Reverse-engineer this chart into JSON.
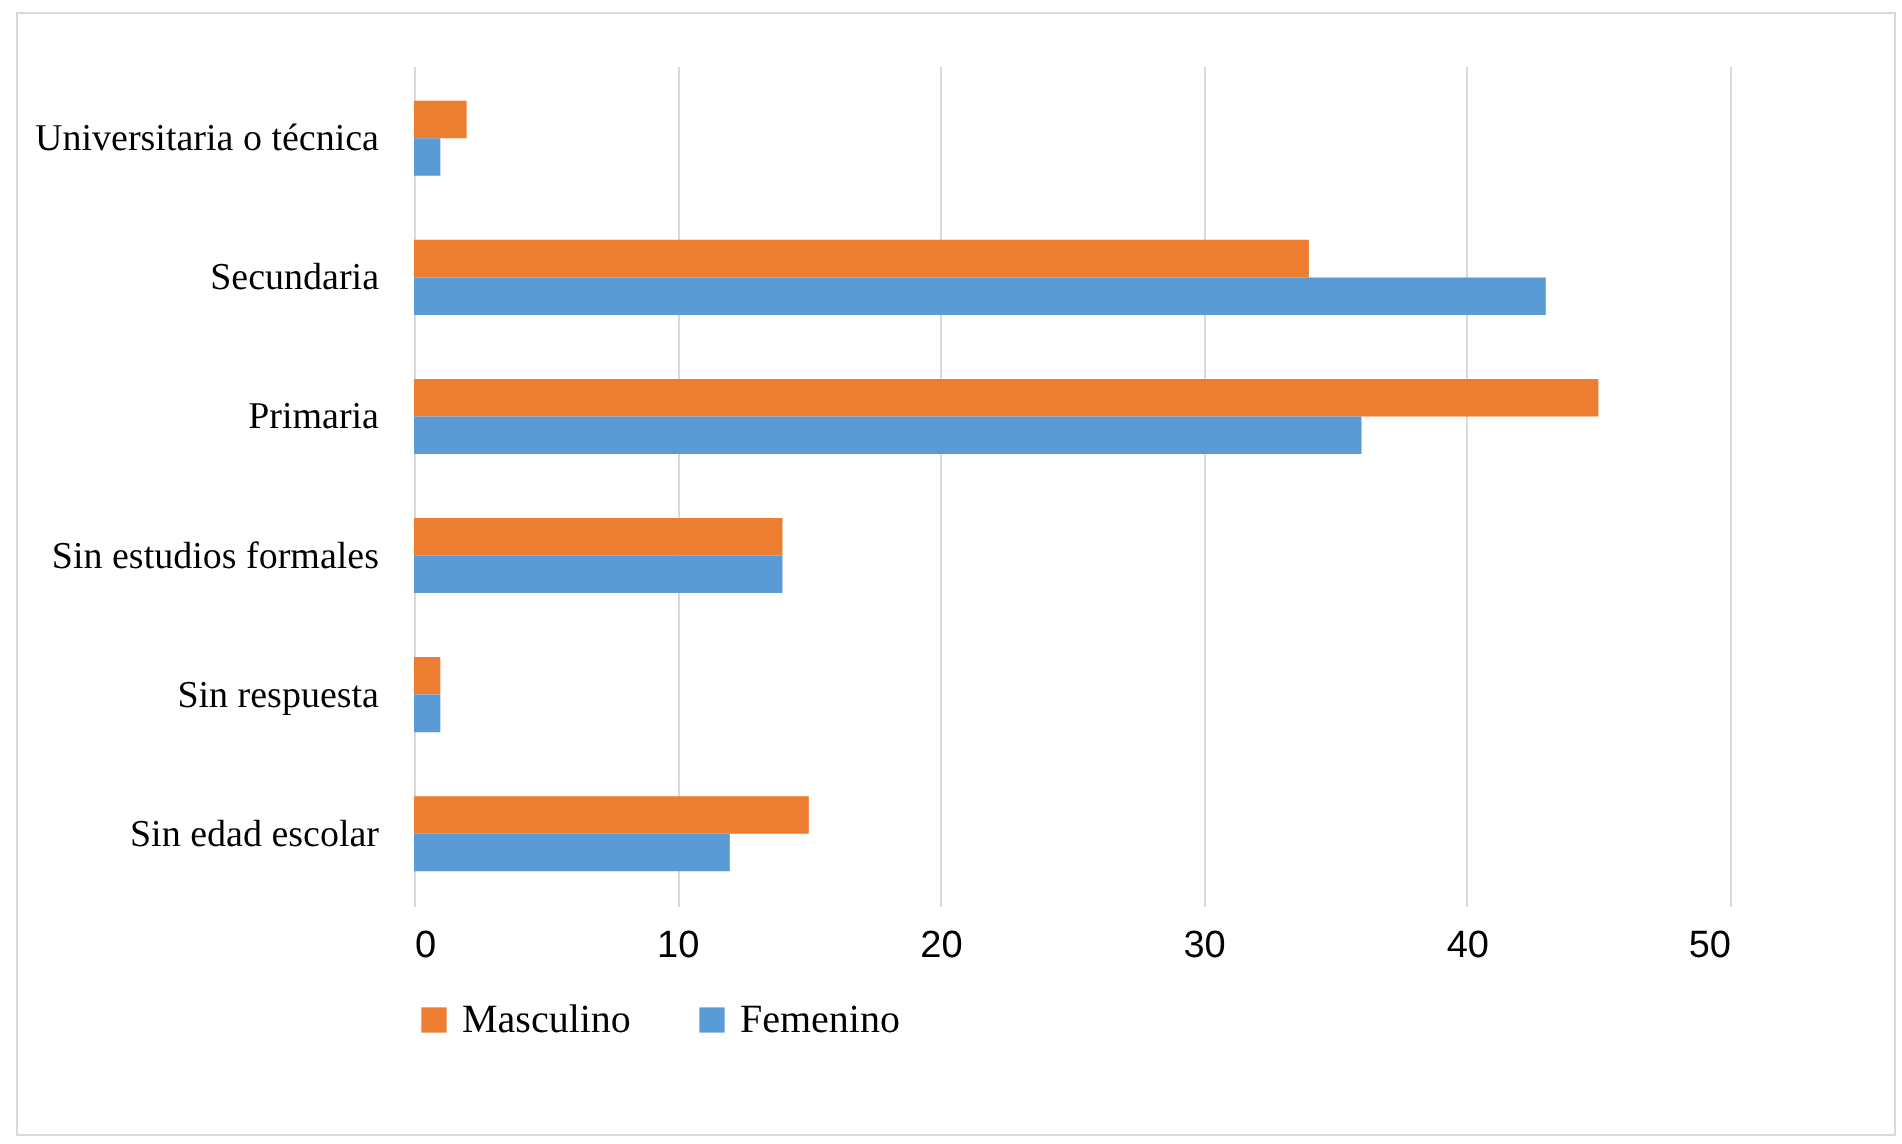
{
  "chart_data": {
    "type": "bar",
    "orientation": "horizontal",
    "categories": [
      "Universitaria o técnica",
      "Secundaria",
      "Primaria",
      "Sin estudios formales",
      "Sin respuesta",
      "Sin edad escolar"
    ],
    "series": [
      {
        "name": "Masculino",
        "color": "#ed7d31",
        "values": [
          2,
          34,
          45,
          14,
          1,
          15
        ]
      },
      {
        "name": "Femenino",
        "color": "#5b9bd5",
        "values": [
          1,
          43,
          36,
          14,
          1,
          12
        ]
      }
    ],
    "xlim": [
      0,
      50
    ],
    "xticks": [
      0,
      10,
      20,
      30,
      40,
      50
    ],
    "grid": "x",
    "legend": "bottom"
  }
}
